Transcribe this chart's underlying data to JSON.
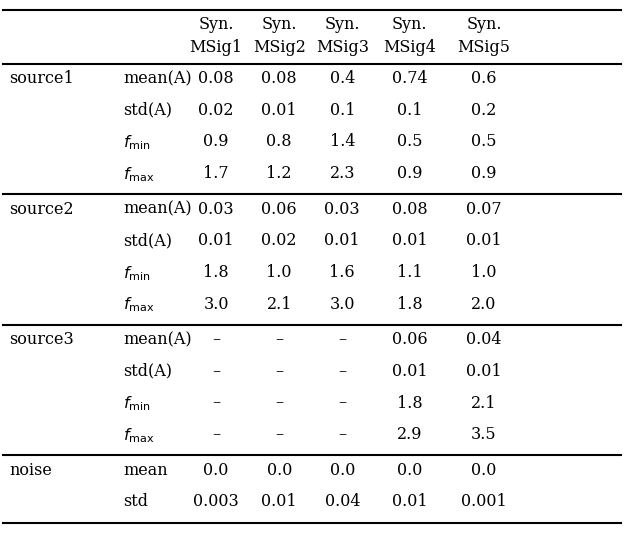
{
  "col_headers_line1": [
    "",
    "",
    "Syn.",
    "Syn.",
    "Syn.",
    "Syn.",
    "Syn."
  ],
  "col_headers_line2": [
    "",
    "",
    "MSig1",
    "MSig2",
    "MSig3",
    "MSig4",
    "MSig5"
  ],
  "sections": [
    {
      "group": "source1",
      "rows": [
        {
          "label": "mean(A)",
          "italic": false,
          "values": [
            "0.08",
            "0.08",
            "0.4",
            "0.74",
            "0.6"
          ]
        },
        {
          "label": "std(A)",
          "italic": false,
          "values": [
            "0.02",
            "0.01",
            "0.1",
            "0.1",
            "0.2"
          ]
        },
        {
          "label": "f_min",
          "italic": true,
          "values": [
            "0.9",
            "0.8",
            "1.4",
            "0.5",
            "0.5"
          ]
        },
        {
          "label": "f_max",
          "italic": true,
          "values": [
            "1.7",
            "1.2",
            "2.3",
            "0.9",
            "0.9"
          ]
        }
      ]
    },
    {
      "group": "source2",
      "rows": [
        {
          "label": "mean(A)",
          "italic": false,
          "values": [
            "0.03",
            "0.06",
            "0.03",
            "0.08",
            "0.07"
          ]
        },
        {
          "label": "std(A)",
          "italic": false,
          "values": [
            "0.01",
            "0.02",
            "0.01",
            "0.01",
            "0.01"
          ]
        },
        {
          "label": "f_min",
          "italic": true,
          "values": [
            "1.8",
            "1.0",
            "1.6",
            "1.1",
            "1.0"
          ]
        },
        {
          "label": "f_max",
          "italic": true,
          "values": [
            "3.0",
            "2.1",
            "3.0",
            "1.8",
            "2.0"
          ]
        }
      ]
    },
    {
      "group": "source3",
      "rows": [
        {
          "label": "mean(A)",
          "italic": false,
          "values": [
            "–",
            "–",
            "–",
            "0.06",
            "0.04"
          ]
        },
        {
          "label": "std(A)",
          "italic": false,
          "values": [
            "–",
            "–",
            "–",
            "0.01",
            "0.01"
          ]
        },
        {
          "label": "f_min",
          "italic": true,
          "values": [
            "–",
            "–",
            "–",
            "1.8",
            "2.1"
          ]
        },
        {
          "label": "f_max",
          "italic": true,
          "values": [
            "–",
            "–",
            "–",
            "2.9",
            "3.5"
          ]
        }
      ]
    },
    {
      "group": "noise",
      "rows": [
        {
          "label": "mean",
          "italic": false,
          "values": [
            "0.0",
            "0.0",
            "0.0",
            "0.0",
            "0.0"
          ]
        },
        {
          "label": "std",
          "italic": false,
          "values": [
            "0.003",
            "0.01",
            "0.04",
            "0.01",
            "0.001"
          ]
        }
      ]
    }
  ],
  "bg_color": "#ffffff",
  "text_color": "#000000",
  "fontsize": 11.5,
  "header_fontsize": 11.5
}
